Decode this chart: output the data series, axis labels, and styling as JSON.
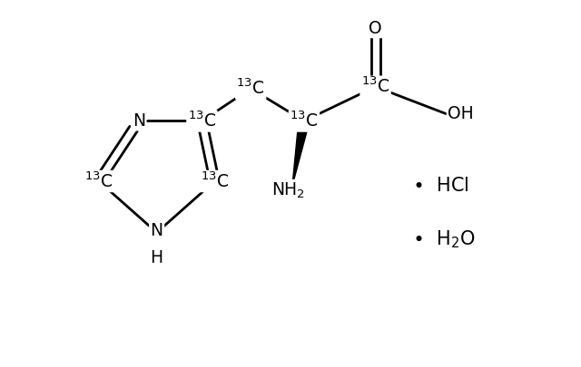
{
  "bg_color": "#ffffff",
  "bond_color": "#000000",
  "figsize": [
    6.4,
    4.05
  ],
  "dpi": 100,
  "xlim": [
    0.0,
    6.4
  ],
  "ylim": [
    0.0,
    4.05
  ]
}
